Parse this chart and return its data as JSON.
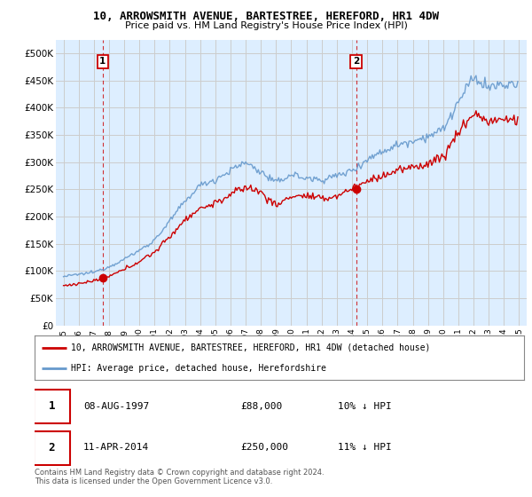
{
  "title1": "10, ARROWSMITH AVENUE, BARTESTREE, HEREFORD, HR1 4DW",
  "title2": "Price paid vs. HM Land Registry's House Price Index (HPI)",
  "ylabel_ticks": [
    "£0",
    "£50K",
    "£100K",
    "£150K",
    "£200K",
    "£250K",
    "£300K",
    "£350K",
    "£400K",
    "£450K",
    "£500K"
  ],
  "ytick_vals": [
    0,
    50000,
    100000,
    150000,
    200000,
    250000,
    300000,
    350000,
    400000,
    450000,
    500000
  ],
  "ylim": [
    0,
    525000
  ],
  "xlim_start": 1994.5,
  "xlim_end": 2025.5,
  "marker1_x": 1997.58,
  "marker1_y": 88000,
  "marker2_x": 2014.27,
  "marker2_y": 250000,
  "marker1_label": "1",
  "marker2_label": "2",
  "sale1_date": "08-AUG-1997",
  "sale1_price": "£88,000",
  "sale1_hpi": "10% ↓ HPI",
  "sale2_date": "11-APR-2014",
  "sale2_price": "£250,000",
  "sale2_hpi": "11% ↓ HPI",
  "legend1": "10, ARROWSMITH AVENUE, BARTESTREE, HEREFORD, HR1 4DW (detached house)",
  "legend2": "HPI: Average price, detached house, Herefordshire",
  "footnote": "Contains HM Land Registry data © Crown copyright and database right 2024.\nThis data is licensed under the Open Government Licence v3.0.",
  "red_color": "#cc0000",
  "blue_color": "#6699cc",
  "chart_bg": "#ddeeff",
  "grid_color": "#cccccc",
  "xtick_years": [
    1995,
    1996,
    1997,
    1998,
    1999,
    2000,
    2001,
    2002,
    2003,
    2004,
    2005,
    2006,
    2007,
    2008,
    2009,
    2010,
    2011,
    2012,
    2013,
    2014,
    2015,
    2016,
    2017,
    2018,
    2019,
    2020,
    2021,
    2022,
    2023,
    2024,
    2025
  ]
}
